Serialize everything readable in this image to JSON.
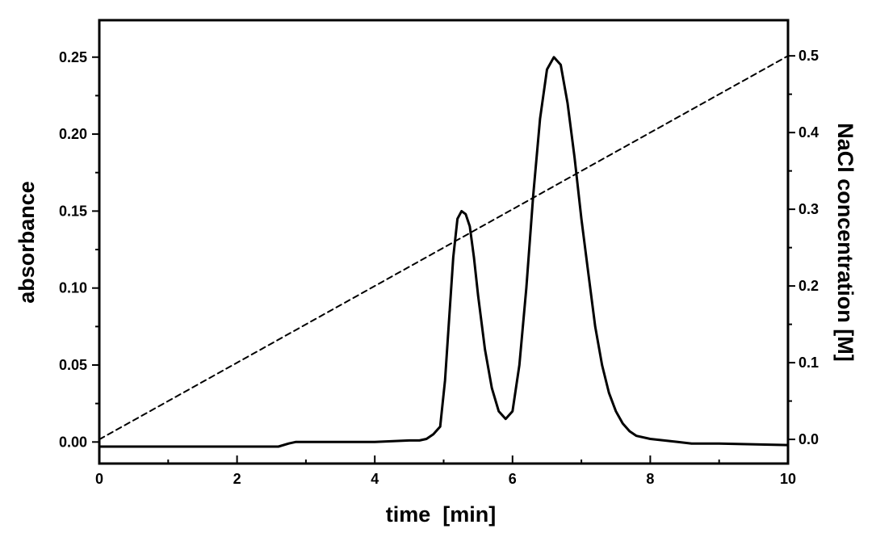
{
  "chart_data": {
    "type": "line",
    "xlabel": "time  [min]",
    "ylabel": "absorbance",
    "y2label": "NaCl concentration [M]",
    "xlim": [
      0,
      10
    ],
    "ylim": [
      -0.014,
      0.274
    ],
    "y2lim": [
      -0.0315,
      0.5465
    ],
    "x_ticks": [
      0,
      2,
      4,
      6,
      8,
      10
    ],
    "y_ticks": [
      0.0,
      0.05,
      0.1,
      0.15,
      0.2,
      0.25
    ],
    "y2_ticks": [
      0.0,
      0.1,
      0.2,
      0.3,
      0.4,
      0.5
    ],
    "x_tick_labels": [
      "0",
      "2",
      "4",
      "6",
      "8",
      "10"
    ],
    "y_tick_labels": [
      "0.00",
      "0.05",
      "0.10",
      "0.15",
      "0.20",
      "0.25"
    ],
    "y2_tick_labels": [
      "0.0",
      "0.1",
      "0.2",
      "0.3",
      "0.4",
      "0.5"
    ],
    "grid": false,
    "series": [
      {
        "axis": "left",
        "style": "solid",
        "color": "#000000",
        "x": [
          0,
          1,
          2,
          2.6,
          2.75,
          2.85,
          3.5,
          4.0,
          4.5,
          4.65,
          4.75,
          4.85,
          4.95,
          5.02,
          5.08,
          5.14,
          5.2,
          5.26,
          5.32,
          5.38,
          5.44,
          5.5,
          5.6,
          5.7,
          5.8,
          5.9,
          6.0,
          6.1,
          6.2,
          6.3,
          6.4,
          6.5,
          6.6,
          6.7,
          6.8,
          6.9,
          7.0,
          7.1,
          7.2,
          7.3,
          7.4,
          7.5,
          7.6,
          7.7,
          7.8,
          8.0,
          8.2,
          8.4,
          8.6,
          9.0,
          10.0
        ],
        "y": [
          -0.003,
          -0.003,
          -0.003,
          -0.003,
          -0.001,
          0.0,
          0.0,
          0.0,
          0.001,
          0.001,
          0.002,
          0.005,
          0.01,
          0.04,
          0.08,
          0.12,
          0.145,
          0.15,
          0.148,
          0.14,
          0.12,
          0.095,
          0.06,
          0.035,
          0.02,
          0.015,
          0.02,
          0.05,
          0.1,
          0.16,
          0.21,
          0.242,
          0.25,
          0.245,
          0.22,
          0.185,
          0.145,
          0.11,
          0.075,
          0.05,
          0.032,
          0.02,
          0.012,
          0.007,
          0.004,
          0.002,
          0.001,
          0.0,
          -0.001,
          -0.001,
          -0.002
        ]
      },
      {
        "axis": "right",
        "style": "dashed",
        "color": "#000000",
        "x": [
          0,
          10
        ],
        "y": [
          0.0,
          0.5
        ]
      }
    ]
  }
}
